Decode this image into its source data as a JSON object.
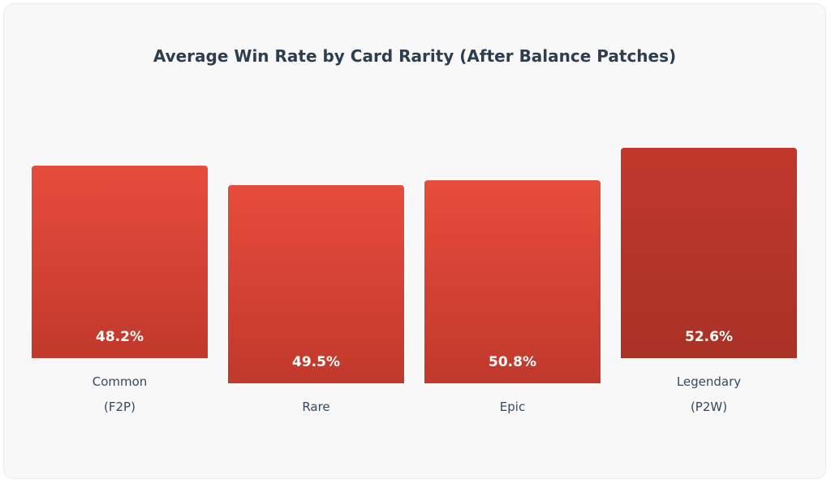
{
  "chart_data": {
    "type": "bar",
    "title": "Average Win Rate by Card Rarity (After Balance Patches)",
    "categories": [
      [
        "Common",
        "(F2P)"
      ],
      [
        "Rare"
      ],
      [
        "Epic"
      ],
      [
        "Legendary",
        "(P2W)"
      ]
    ],
    "values": [
      48.2,
      49.5,
      50.8,
      52.6
    ],
    "value_labels": [
      "48.2%",
      "49.5%",
      "50.8%",
      "52.6%"
    ],
    "unit": "%",
    "highlight_index": 3,
    "colors": {
      "bar_top": "#e74c3c",
      "bar_bottom": "#c0392b",
      "highlight_top": "#c0392b",
      "highlight_bottom": "#a93226"
    },
    "xlabel": "",
    "ylabel": "",
    "grid": false
  }
}
